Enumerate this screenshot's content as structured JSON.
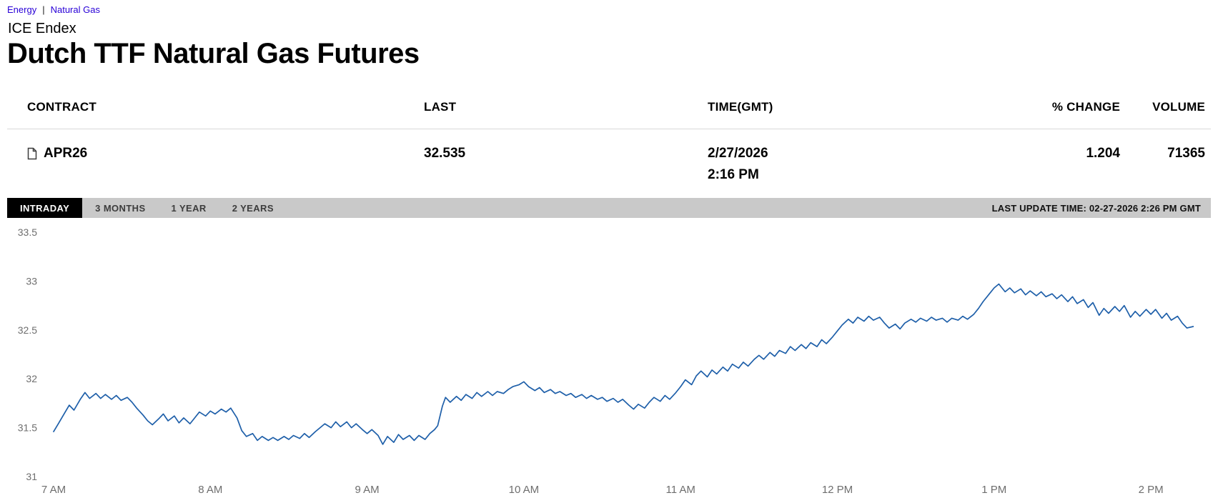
{
  "breadcrumb": {
    "links": [
      {
        "label": "Energy"
      },
      {
        "label": "Natural Gas"
      }
    ],
    "separator": "|"
  },
  "header": {
    "kicker": "ICE Endex",
    "title": "Dutch TTF Natural Gas Futures"
  },
  "quote_table": {
    "columns": [
      "CONTRACT",
      "LAST",
      "TIME(GMT)",
      "% CHANGE",
      "VOLUME"
    ],
    "row": {
      "contract": "APR26",
      "last": "32.535",
      "date": "2/27/2026",
      "time": "2:16 PM",
      "pct_change": "1.204",
      "volume": "71365"
    }
  },
  "range_tabs": {
    "tabs": [
      {
        "label": "INTRADAY",
        "active": true
      },
      {
        "label": "3 MONTHS",
        "active": false
      },
      {
        "label": "1 YEAR",
        "active": false
      },
      {
        "label": "2 YEARS",
        "active": false
      }
    ],
    "last_update": "LAST UPDATE TIME: 02-27-2026 2:26 PM GMT"
  },
  "colors": {
    "breadcrumb_link": "#2800d7",
    "tab_bar_bg": "#c9c9c9",
    "tab_active_bg": "#000000",
    "line": "#1e5fa9",
    "axis_text": "#6e6e6e"
  },
  "chart_data": {
    "type": "line",
    "title": "Dutch TTF Natural Gas Futures intraday price",
    "x_tick_labels": [
      "7 AM",
      "8 AM",
      "9 AM",
      "10 AM",
      "11 AM",
      "12 PM",
      "1 PM",
      "2 PM"
    ],
    "x_tick_hours": [
      7,
      8,
      9,
      10,
      11,
      12,
      13,
      14
    ],
    "y_ticks": [
      33.5,
      33,
      32.5,
      32,
      31.5,
      31
    ],
    "ylim": [
      31,
      33.5
    ],
    "xlim_hours": [
      7,
      14.27
    ],
    "line_color": "#1e5fa9",
    "points": [
      [
        7.0,
        31.46
      ],
      [
        7.03,
        31.54
      ],
      [
        7.07,
        31.65
      ],
      [
        7.1,
        31.73
      ],
      [
        7.13,
        31.68
      ],
      [
        7.17,
        31.79
      ],
      [
        7.2,
        31.86
      ],
      [
        7.23,
        31.8
      ],
      [
        7.27,
        31.85
      ],
      [
        7.3,
        31.8
      ],
      [
        7.33,
        31.84
      ],
      [
        7.37,
        31.79
      ],
      [
        7.4,
        31.83
      ],
      [
        7.43,
        31.78
      ],
      [
        7.47,
        31.81
      ],
      [
        7.5,
        31.76
      ],
      [
        7.53,
        31.7
      ],
      [
        7.57,
        31.63
      ],
      [
        7.6,
        31.57
      ],
      [
        7.63,
        31.53
      ],
      [
        7.67,
        31.59
      ],
      [
        7.7,
        31.64
      ],
      [
        7.73,
        31.57
      ],
      [
        7.77,
        31.62
      ],
      [
        7.8,
        31.55
      ],
      [
        7.83,
        31.6
      ],
      [
        7.87,
        31.54
      ],
      [
        7.9,
        31.6
      ],
      [
        7.93,
        31.66
      ],
      [
        7.97,
        31.62
      ],
      [
        8.0,
        31.67
      ],
      [
        8.03,
        31.64
      ],
      [
        8.07,
        31.69
      ],
      [
        8.1,
        31.66
      ],
      [
        8.13,
        31.7
      ],
      [
        8.17,
        31.6
      ],
      [
        8.2,
        31.47
      ],
      [
        8.23,
        31.41
      ],
      [
        8.27,
        31.44
      ],
      [
        8.3,
        31.37
      ],
      [
        8.33,
        31.41
      ],
      [
        8.37,
        31.37
      ],
      [
        8.4,
        31.4
      ],
      [
        8.43,
        31.37
      ],
      [
        8.47,
        31.41
      ],
      [
        8.5,
        31.38
      ],
      [
        8.53,
        31.42
      ],
      [
        8.57,
        31.39
      ],
      [
        8.6,
        31.44
      ],
      [
        8.63,
        31.4
      ],
      [
        8.67,
        31.46
      ],
      [
        8.7,
        31.5
      ],
      [
        8.73,
        31.54
      ],
      [
        8.77,
        31.5
      ],
      [
        8.8,
        31.56
      ],
      [
        8.83,
        31.51
      ],
      [
        8.87,
        31.56
      ],
      [
        8.9,
        31.5
      ],
      [
        8.93,
        31.54
      ],
      [
        8.97,
        31.48
      ],
      [
        9.0,
        31.44
      ],
      [
        9.03,
        31.48
      ],
      [
        9.07,
        31.42
      ],
      [
        9.1,
        31.33
      ],
      [
        9.13,
        31.41
      ],
      [
        9.17,
        31.35
      ],
      [
        9.2,
        31.43
      ],
      [
        9.23,
        31.38
      ],
      [
        9.27,
        31.42
      ],
      [
        9.3,
        31.37
      ],
      [
        9.33,
        31.42
      ],
      [
        9.37,
        31.38
      ],
      [
        9.4,
        31.44
      ],
      [
        9.43,
        31.48
      ],
      [
        9.45,
        31.52
      ],
      [
        9.48,
        31.72
      ],
      [
        9.5,
        31.81
      ],
      [
        9.53,
        31.76
      ],
      [
        9.57,
        31.82
      ],
      [
        9.6,
        31.78
      ],
      [
        9.63,
        31.84
      ],
      [
        9.67,
        31.8
      ],
      [
        9.7,
        31.86
      ],
      [
        9.73,
        31.82
      ],
      [
        9.77,
        31.87
      ],
      [
        9.8,
        31.83
      ],
      [
        9.83,
        31.87
      ],
      [
        9.87,
        31.85
      ],
      [
        9.9,
        31.89
      ],
      [
        9.93,
        31.92
      ],
      [
        9.97,
        31.94
      ],
      [
        10.0,
        31.97
      ],
      [
        10.03,
        31.92
      ],
      [
        10.07,
        31.88
      ],
      [
        10.1,
        31.91
      ],
      [
        10.13,
        31.86
      ],
      [
        10.17,
        31.89
      ],
      [
        10.2,
        31.85
      ],
      [
        10.23,
        31.87
      ],
      [
        10.27,
        31.83
      ],
      [
        10.3,
        31.85
      ],
      [
        10.33,
        31.81
      ],
      [
        10.37,
        31.84
      ],
      [
        10.4,
        31.8
      ],
      [
        10.43,
        31.83
      ],
      [
        10.47,
        31.79
      ],
      [
        10.5,
        31.81
      ],
      [
        10.53,
        31.77
      ],
      [
        10.57,
        31.8
      ],
      [
        10.6,
        31.76
      ],
      [
        10.63,
        31.79
      ],
      [
        10.67,
        31.73
      ],
      [
        10.7,
        31.69
      ],
      [
        10.73,
        31.74
      ],
      [
        10.77,
        31.7
      ],
      [
        10.8,
        31.76
      ],
      [
        10.83,
        31.81
      ],
      [
        10.87,
        31.77
      ],
      [
        10.9,
        31.83
      ],
      [
        10.93,
        31.79
      ],
      [
        10.97,
        31.86
      ],
      [
        11.0,
        31.92
      ],
      [
        11.03,
        31.99
      ],
      [
        11.07,
        31.94
      ],
      [
        11.1,
        32.03
      ],
      [
        11.13,
        32.08
      ],
      [
        11.17,
        32.02
      ],
      [
        11.2,
        32.09
      ],
      [
        11.23,
        32.05
      ],
      [
        11.27,
        32.12
      ],
      [
        11.3,
        32.08
      ],
      [
        11.33,
        32.15
      ],
      [
        11.37,
        32.11
      ],
      [
        11.4,
        32.17
      ],
      [
        11.43,
        32.13
      ],
      [
        11.47,
        32.2
      ],
      [
        11.5,
        32.24
      ],
      [
        11.53,
        32.2
      ],
      [
        11.57,
        32.27
      ],
      [
        11.6,
        32.23
      ],
      [
        11.63,
        32.29
      ],
      [
        11.67,
        32.26
      ],
      [
        11.7,
        32.33
      ],
      [
        11.73,
        32.29
      ],
      [
        11.77,
        32.35
      ],
      [
        11.8,
        32.31
      ],
      [
        11.83,
        32.37
      ],
      [
        11.87,
        32.33
      ],
      [
        11.9,
        32.4
      ],
      [
        11.93,
        32.36
      ],
      [
        11.97,
        32.43
      ],
      [
        12.0,
        32.49
      ],
      [
        12.03,
        32.55
      ],
      [
        12.07,
        32.61
      ],
      [
        12.1,
        32.57
      ],
      [
        12.13,
        32.63
      ],
      [
        12.17,
        32.59
      ],
      [
        12.2,
        32.64
      ],
      [
        12.23,
        32.6
      ],
      [
        12.27,
        32.63
      ],
      [
        12.3,
        32.57
      ],
      [
        12.33,
        32.52
      ],
      [
        12.37,
        32.56
      ],
      [
        12.4,
        32.51
      ],
      [
        12.43,
        32.57
      ],
      [
        12.47,
        32.61
      ],
      [
        12.5,
        32.58
      ],
      [
        12.53,
        32.62
      ],
      [
        12.57,
        32.59
      ],
      [
        12.6,
        32.63
      ],
      [
        12.63,
        32.6
      ],
      [
        12.67,
        32.62
      ],
      [
        12.7,
        32.58
      ],
      [
        12.73,
        32.62
      ],
      [
        12.77,
        32.6
      ],
      [
        12.8,
        32.64
      ],
      [
        12.83,
        32.61
      ],
      [
        12.87,
        32.66
      ],
      [
        12.9,
        32.72
      ],
      [
        12.93,
        32.79
      ],
      [
        12.97,
        32.87
      ],
      [
        13.0,
        32.93
      ],
      [
        13.03,
        32.97
      ],
      [
        13.07,
        32.89
      ],
      [
        13.1,
        32.93
      ],
      [
        13.13,
        32.88
      ],
      [
        13.17,
        32.92
      ],
      [
        13.2,
        32.86
      ],
      [
        13.23,
        32.9
      ],
      [
        13.27,
        32.85
      ],
      [
        13.3,
        32.89
      ],
      [
        13.33,
        32.84
      ],
      [
        13.37,
        32.87
      ],
      [
        13.4,
        32.82
      ],
      [
        13.43,
        32.86
      ],
      [
        13.47,
        32.79
      ],
      [
        13.5,
        32.84
      ],
      [
        13.53,
        32.77
      ],
      [
        13.57,
        32.81
      ],
      [
        13.6,
        32.73
      ],
      [
        13.63,
        32.78
      ],
      [
        13.67,
        32.65
      ],
      [
        13.7,
        32.72
      ],
      [
        13.73,
        32.67
      ],
      [
        13.77,
        32.74
      ],
      [
        13.8,
        32.69
      ],
      [
        13.83,
        32.75
      ],
      [
        13.87,
        32.63
      ],
      [
        13.9,
        32.69
      ],
      [
        13.93,
        32.64
      ],
      [
        13.97,
        32.71
      ],
      [
        14.0,
        32.66
      ],
      [
        14.03,
        32.71
      ],
      [
        14.07,
        32.62
      ],
      [
        14.1,
        32.67
      ],
      [
        14.13,
        32.6
      ],
      [
        14.17,
        32.64
      ],
      [
        14.2,
        32.57
      ],
      [
        14.23,
        32.52
      ],
      [
        14.27,
        32.535
      ]
    ]
  }
}
